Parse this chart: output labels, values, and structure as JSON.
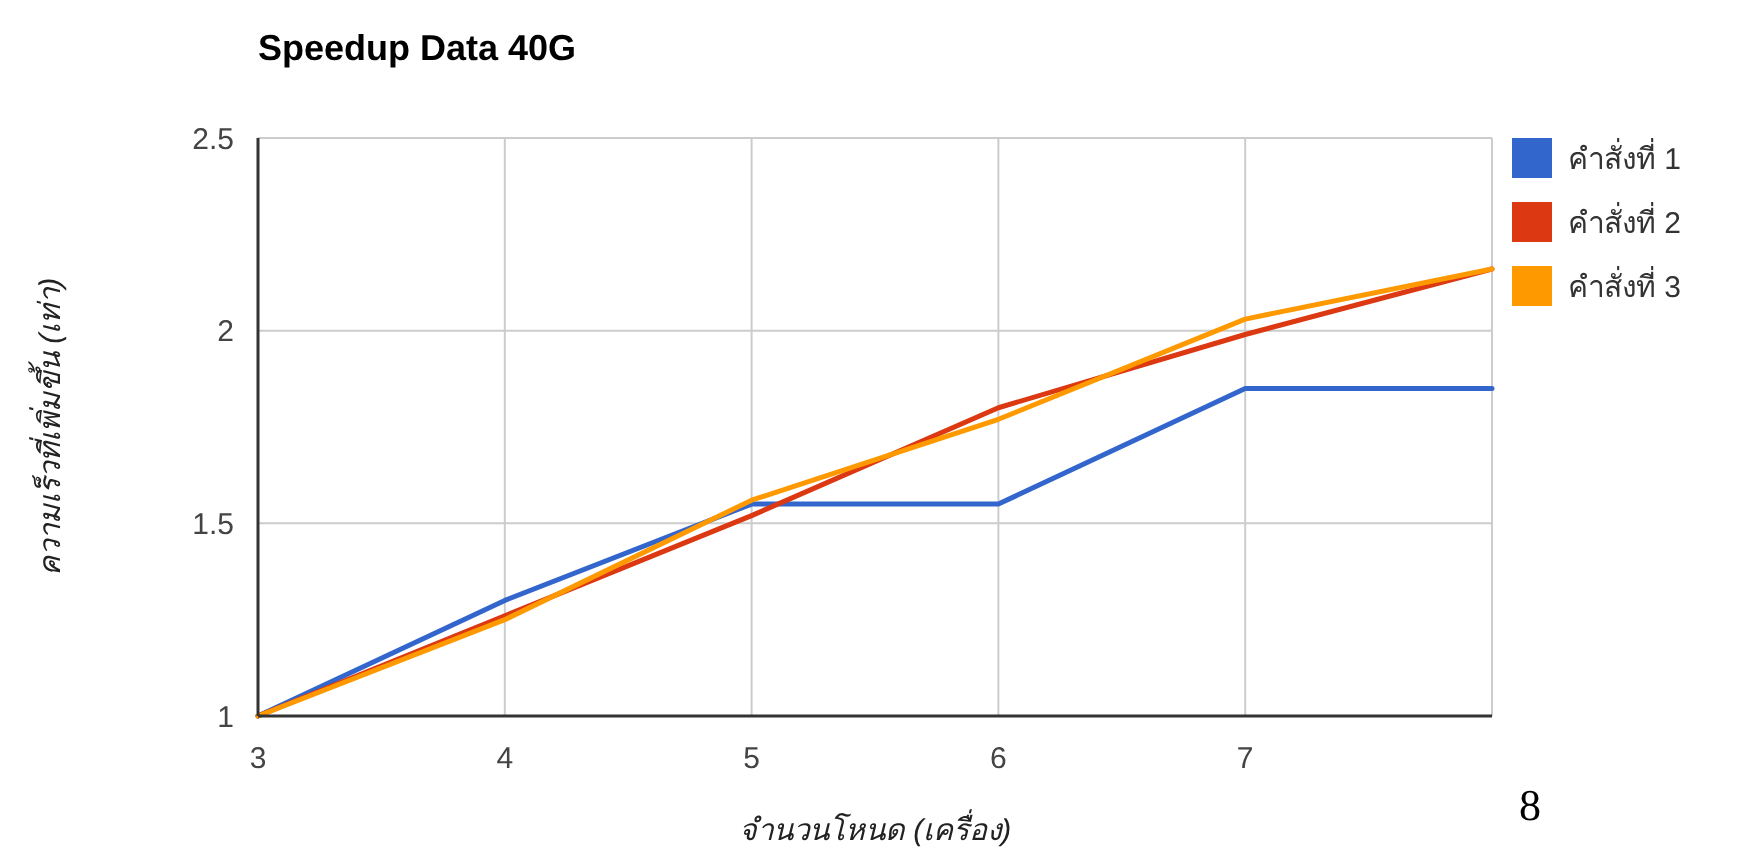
{
  "chart_data": {
    "type": "line",
    "title": "Speedup Data 40G",
    "xlabel": "จำนวนโหนด (เครื่อง)",
    "ylabel": "ความเร็วที่เพิ่มขึ้น (เท่า)",
    "x": [
      3,
      4,
      5,
      6,
      7,
      8
    ],
    "series": [
      {
        "name": "คำสั่งที่ 1",
        "color": "#3366cc",
        "values": [
          1,
          1.3,
          1.55,
          1.55,
          1.85,
          1.85
        ]
      },
      {
        "name": "คำสั่งที่ 2",
        "color": "#dc3912",
        "values": [
          1,
          1.26,
          1.52,
          1.8,
          1.99,
          2.16
        ]
      },
      {
        "name": "คำสั่งที่ 3",
        "color": "#ff9900",
        "values": [
          1,
          1.25,
          1.56,
          1.77,
          2.03,
          2.16
        ]
      }
    ],
    "xlim": [
      3,
      8
    ],
    "xticks": [
      3,
      4,
      5,
      6,
      7
    ],
    "ylim": [
      1,
      2.5
    ],
    "yticks": [
      1,
      1.5,
      2,
      2.5
    ],
    "grid": true,
    "legend": "top right",
    "marker": "none",
    "line_style": "solid",
    "annotations": [
      "8"
    ]
  }
}
